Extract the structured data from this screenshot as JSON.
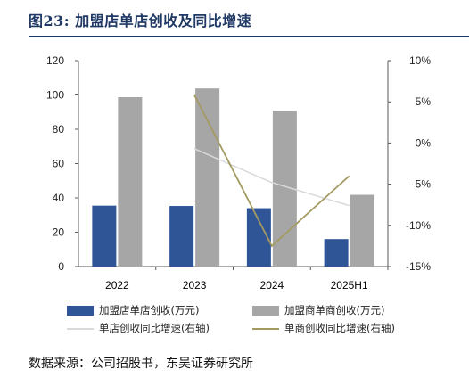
{
  "title": "图23:  加盟店单店创收及同比增速",
  "source": "数据来源：公司招股书，东吴证券研究所",
  "colors": {
    "title": "#1f3864",
    "bar_store": "#2f5597",
    "bar_merchant": "#a6a6a6",
    "line_store_growth": "#d9d9d9",
    "line_merchant_growth": "#a39a62"
  },
  "chart_data": {
    "type": "bar",
    "categories": [
      "2022",
      "2023",
      "2024",
      "2025H1"
    ],
    "left_axis": {
      "ylim": [
        0,
        120
      ],
      "ticks": [
        "0",
        "20",
        "40",
        "60",
        "80",
        "100",
        "120"
      ]
    },
    "right_axis": {
      "ylim": [
        -15,
        10
      ],
      "ticks": [
        "10%",
        "5%",
        "0%",
        "-5%",
        "-10%",
        "-15%"
      ],
      "unit": "%"
    },
    "series": [
      {
        "name": "加盟店单店创收(万元)",
        "kind": "bar",
        "axis": "left",
        "values": [
          35.5,
          35.3,
          34.0,
          16.0
        ]
      },
      {
        "name": "加盟商单商创收(万元)",
        "kind": "bar",
        "axis": "left",
        "values": [
          98.7,
          103.8,
          90.7,
          41.8
        ]
      },
      {
        "name": "单店创收同比增速(右轴)",
        "kind": "line",
        "axis": "right",
        "values": [
          null,
          -0.7,
          -4.8,
          -7.6
        ]
      },
      {
        "name": "单商创收同比增速(右轴)",
        "kind": "line",
        "axis": "right",
        "values": [
          null,
          5.8,
          -12.5,
          -4.0
        ]
      }
    ],
    "legend": "bottom"
  }
}
